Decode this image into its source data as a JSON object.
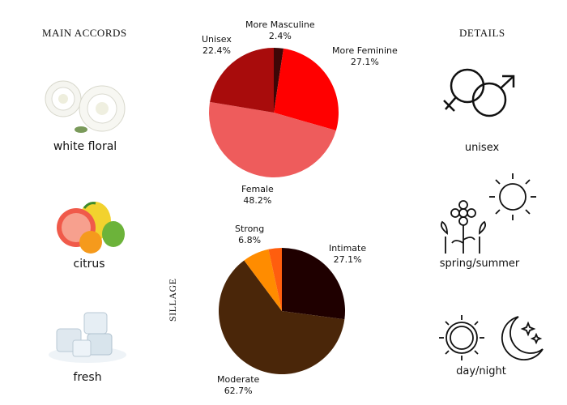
{
  "headings": {
    "accords": "MAIN ACCORDS",
    "details": "DETAILS",
    "sillage": "SILLAGE"
  },
  "accords": [
    {
      "label": "white floral",
      "icon": "white-rose-icon"
    },
    {
      "label": "citrus",
      "icon": "citrus-fruit-icon"
    },
    {
      "label": "fresh",
      "icon": "ice-cubes-icon"
    }
  ],
  "details": [
    {
      "label": "unisex",
      "icon": "gender-symbols-icon"
    },
    {
      "label": "spring/summer",
      "icon": "flowers-sun-icon"
    },
    {
      "label": "day/night",
      "icon": "sun-moon-icon"
    }
  ],
  "chart_data": [
    {
      "type": "pie",
      "title": "",
      "slices": [
        {
          "label": "More Masculine",
          "value": 2.4,
          "display": "2.4%",
          "color": "#3d0707"
        },
        {
          "label": "More Feminine",
          "value": 27.1,
          "display": "27.1%",
          "color": "#ff0000"
        },
        {
          "label": "Female",
          "value": 48.2,
          "display": "48.2%",
          "color": "#ee5c5c"
        },
        {
          "label": "Unisex",
          "value": 22.4,
          "display": "22.4%",
          "color": "#a80c0c"
        }
      ]
    },
    {
      "type": "pie",
      "title": "",
      "slices": [
        {
          "label": "Intimate",
          "value": 27.1,
          "display": "27.1%",
          "color": "#1f0000"
        },
        {
          "label": "Moderate",
          "value": 62.7,
          "display": "62.7%",
          "color": "#4a2609"
        },
        {
          "label": "Strong",
          "value": 6.8,
          "display": "6.8%",
          "color": "#ff8c00"
        },
        {
          "label": "",
          "value": 3.4,
          "display": "",
          "color": "#ff5e0e"
        }
      ]
    }
  ]
}
